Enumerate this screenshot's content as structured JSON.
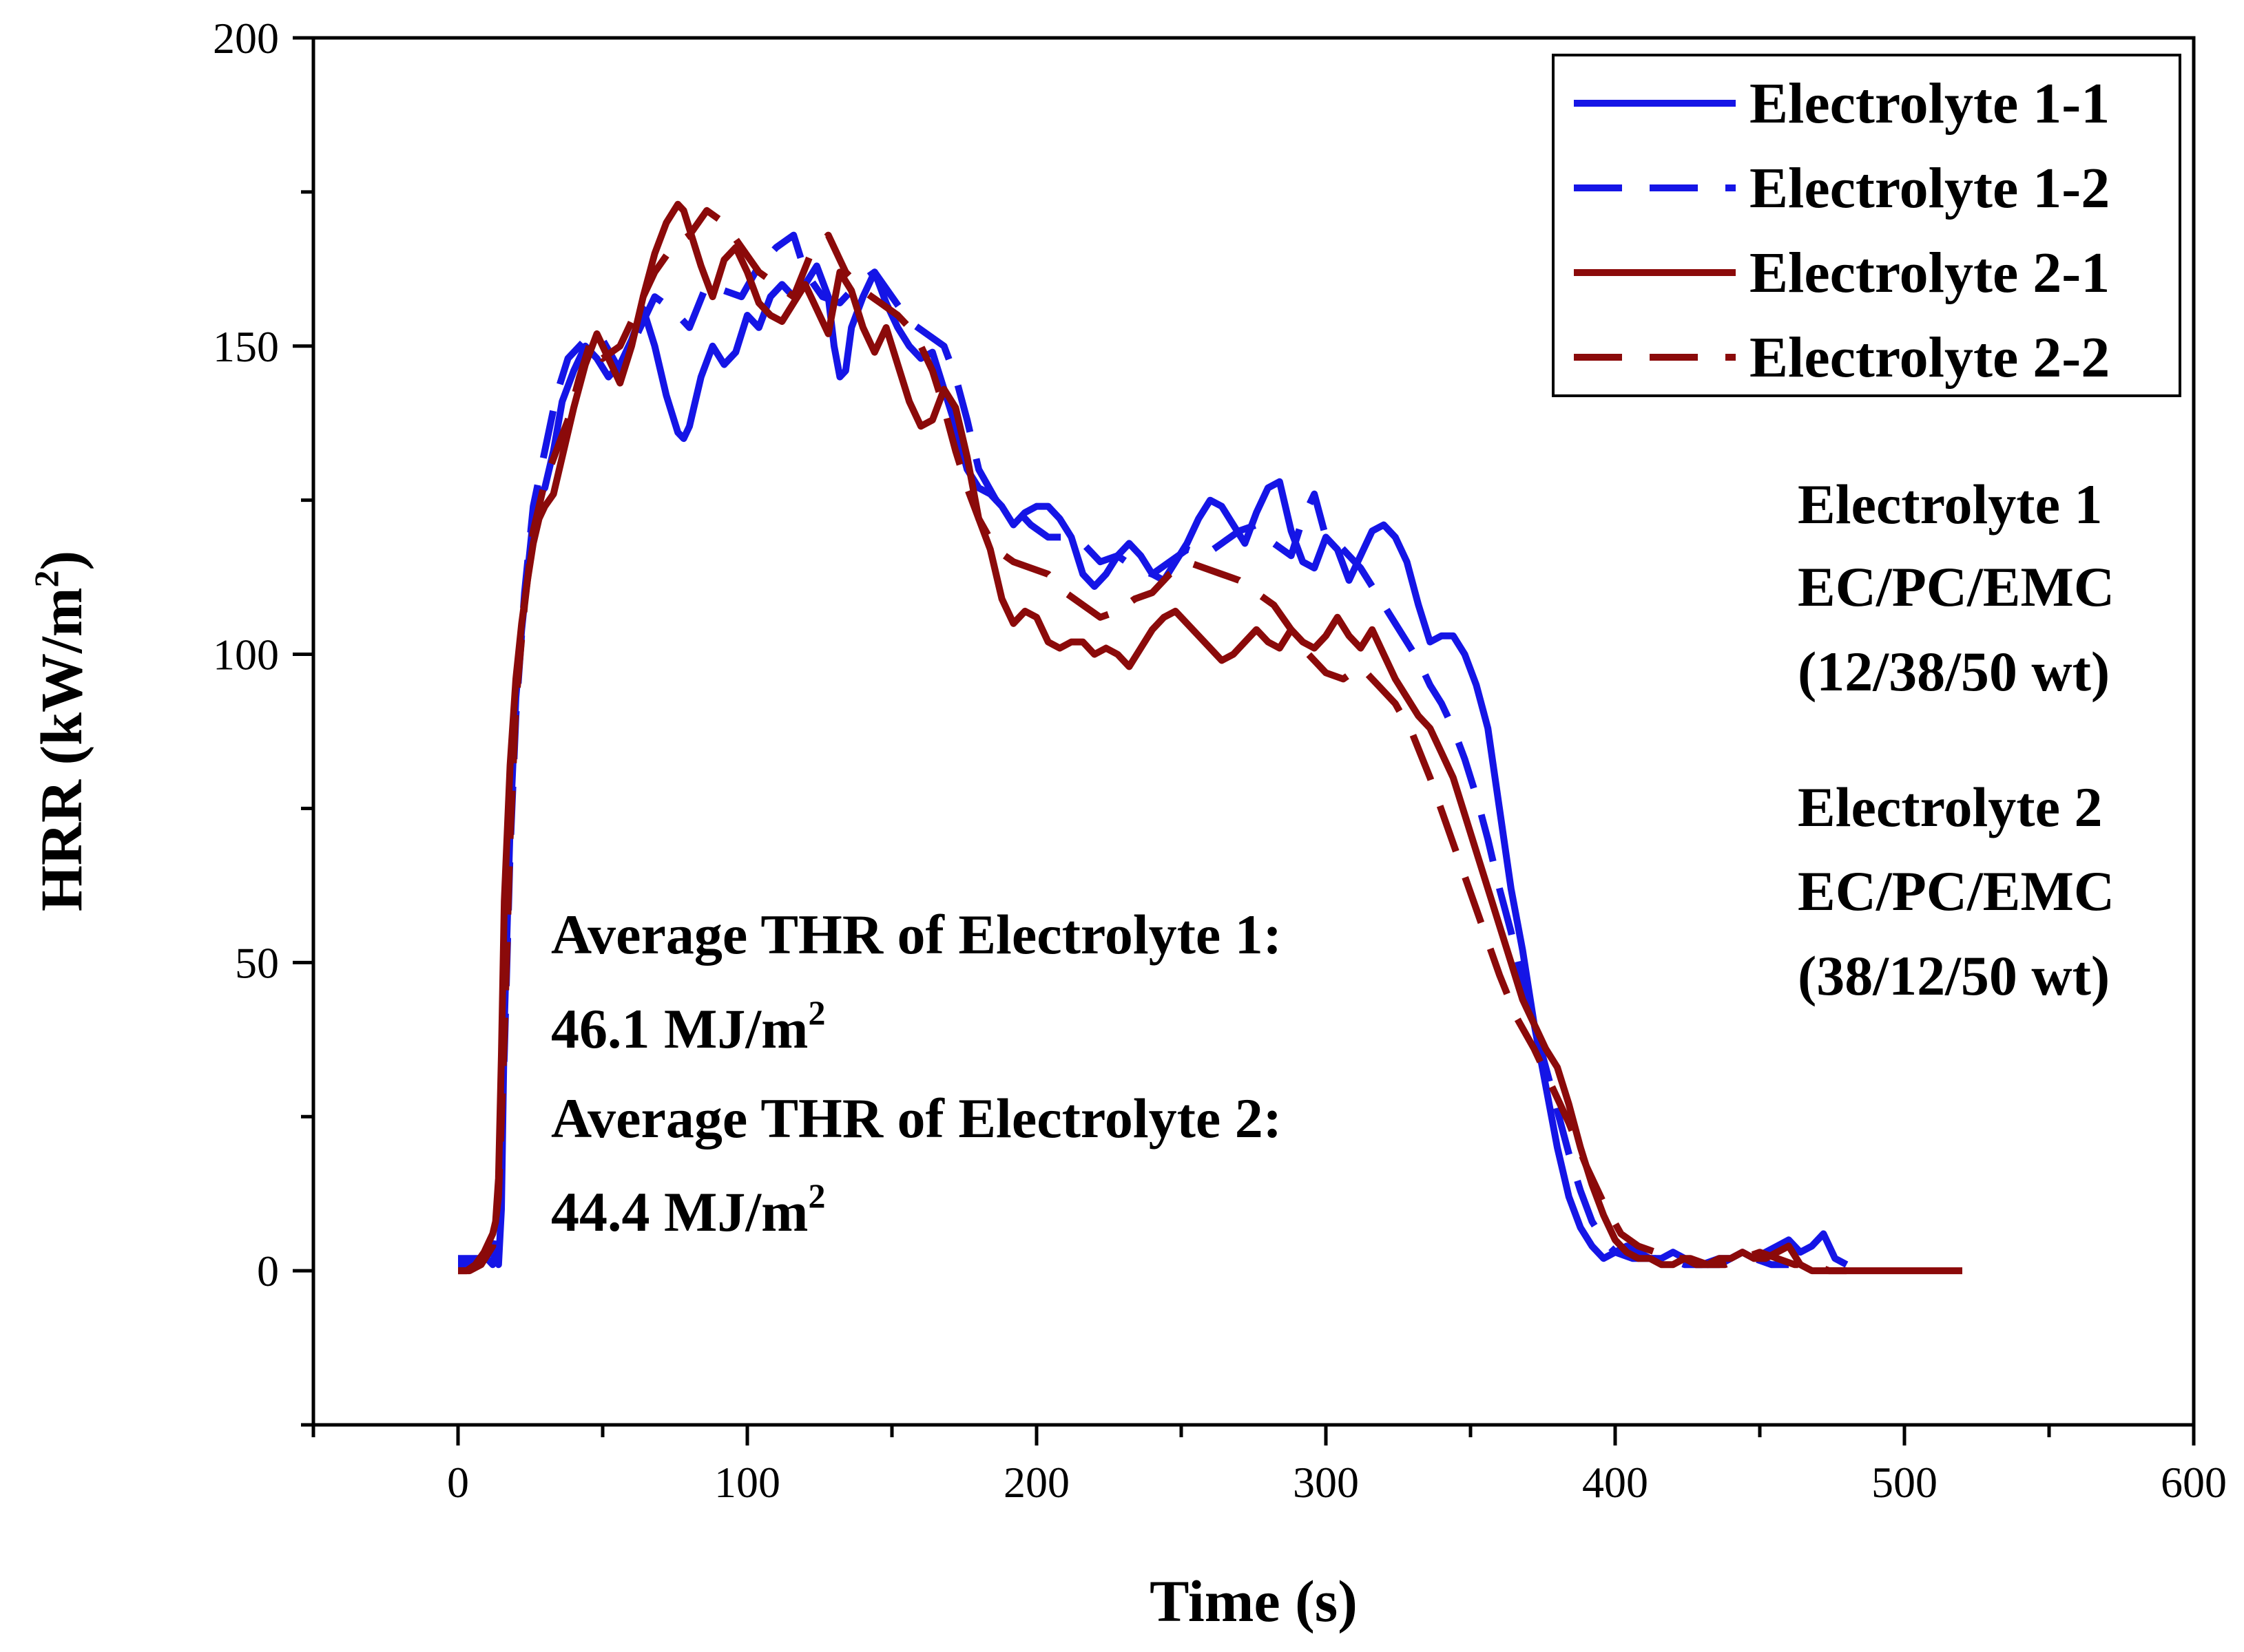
{
  "chart_data": {
    "type": "line",
    "title": "",
    "xlabel": "Time (s)",
    "ylabel": "HRR (kW/m",
    "ylabel_sup": "2",
    "ylabel_close": ")",
    "xlim": [
      -50,
      600
    ],
    "ylim": [
      -25,
      200
    ],
    "xticks": [
      0,
      100,
      200,
      300,
      400,
      500,
      600
    ],
    "yticks": [
      0,
      50,
      100,
      150,
      200
    ],
    "grid": false,
    "legend_position": "top-right",
    "series": [
      {
        "name": "Electrolyte 1-1",
        "color": "#1515e6",
        "dash": "solid",
        "x": [
          0,
          4,
          8,
          10,
          12,
          13,
          14,
          15,
          16,
          18,
          20,
          22,
          24,
          26,
          28,
          30,
          33,
          36,
          40,
          44,
          48,
          52,
          56,
          60,
          64,
          68,
          72,
          76,
          78,
          80,
          84,
          88,
          92,
          96,
          100,
          104,
          108,
          112,
          116,
          120,
          124,
          128,
          130,
          132,
          134,
          136,
          140,
          144,
          148,
          152,
          156,
          160,
          164,
          168,
          172,
          176,
          180,
          184,
          188,
          192,
          196,
          200,
          204,
          208,
          212,
          216,
          220,
          224,
          228,
          232,
          236,
          240,
          244,
          248,
          252,
          256,
          260,
          264,
          268,
          272,
          276,
          280,
          284,
          288,
          292,
          296,
          300,
          304,
          308,
          312,
          316,
          320,
          324,
          328,
          332,
          336,
          340,
          344,
          348,
          352,
          356,
          360,
          364,
          368,
          372,
          376,
          380,
          384,
          388,
          392,
          396,
          400,
          404,
          408,
          412,
          416,
          420,
          424,
          428,
          432,
          436,
          440,
          444,
          448,
          452,
          456,
          460,
          464,
          468,
          472,
          476,
          480
        ],
        "y": [
          1,
          1,
          2,
          2,
          1,
          3,
          1,
          10,
          40,
          72,
          93,
          104,
          113,
          122,
          126,
          127,
          133,
          141,
          146,
          150,
          148,
          145,
          147,
          151,
          156,
          150,
          142,
          136,
          135,
          137,
          145,
          150,
          147,
          149,
          155,
          153,
          158,
          160,
          158,
          160,
          163,
          158,
          150,
          145,
          146,
          153,
          158,
          162,
          157,
          153,
          150,
          148,
          149,
          143,
          137,
          130,
          127,
          126,
          124,
          121,
          123,
          124,
          124,
          122,
          119,
          113,
          111,
          113,
          116,
          118,
          116,
          113,
          112,
          115,
          118,
          122,
          125,
          124,
          121,
          118,
          123,
          127,
          128,
          120,
          115,
          114,
          119,
          117,
          112,
          116,
          120,
          121,
          119,
          115,
          108,
          102,
          103,
          103,
          100,
          95,
          88,
          75,
          62,
          52,
          40,
          30,
          20,
          12,
          7,
          4,
          2,
          3,
          4,
          3,
          2,
          2,
          3,
          2,
          1,
          1,
          1,
          2,
          3,
          2,
          3,
          4,
          5,
          3,
          4,
          6,
          2,
          1
        ],
        "y_extra_note": ""
      },
      {
        "name": "Electrolyte 1-2",
        "color": "#1515e6",
        "dash": "dashed",
        "x": [
          0,
          4,
          8,
          12,
          14,
          16,
          18,
          20,
          23,
          26,
          30,
          34,
          38,
          42,
          46,
          50,
          56,
          62,
          68,
          74,
          80,
          86,
          92,
          98,
          104,
          110,
          116,
          120,
          126,
          132,
          138,
          144,
          150,
          156,
          162,
          168,
          172,
          176,
          180,
          186,
          192,
          198,
          204,
          210,
          216,
          222,
          228,
          234,
          240,
          246,
          252,
          258,
          264,
          270,
          276,
          282,
          288,
          292,
          296,
          300,
          304,
          308,
          312,
          316,
          320,
          324,
          328,
          332,
          336,
          340,
          344,
          348,
          352,
          356,
          360,
          364,
          368,
          372,
          376,
          380,
          384,
          388,
          392,
          396,
          400,
          406,
          412,
          418,
          424,
          430,
          436,
          442,
          448,
          454,
          460
        ],
        "y": [
          2,
          2,
          2,
          3,
          10,
          35,
          68,
          90,
          110,
          124,
          133,
          142,
          148,
          150,
          152,
          151,
          146,
          152,
          158,
          156,
          153,
          160,
          159,
          158,
          163,
          166,
          168,
          162,
          158,
          157,
          160,
          162,
          158,
          154,
          152,
          150,
          145,
          138,
          130,
          125,
          124,
          121,
          119,
          119,
          118,
          115,
          116,
          114,
          113,
          115,
          117,
          116,
          118,
          120,
          121,
          118,
          116,
          122,
          126,
          119,
          118,
          116,
          114,
          111,
          108,
          105,
          102,
          99,
          95,
          92,
          88,
          83,
          77,
          70,
          62,
          55,
          47,
          40,
          33,
          26,
          19,
          13,
          8,
          5,
          3,
          2,
          2,
          2,
          1,
          1,
          2,
          2,
          2,
          1,
          1
        ]
      },
      {
        "name": "Electrolyte 2-1",
        "color": "#8b0a0a",
        "dash": "solid",
        "x": [
          0,
          3,
          6,
          9,
          12,
          13,
          14,
          15,
          16,
          18,
          20,
          22,
          24,
          26,
          28,
          30,
          33,
          36,
          40,
          44,
          48,
          52,
          56,
          60,
          64,
          68,
          72,
          76,
          78,
          80,
          84,
          88,
          92,
          96,
          100,
          104,
          108,
          112,
          116,
          120,
          124,
          128,
          132,
          136,
          140,
          144,
          148,
          152,
          156,
          160,
          164,
          168,
          172,
          176,
          180,
          184,
          188,
          192,
          196,
          200,
          204,
          208,
          212,
          216,
          220,
          224,
          228,
          232,
          236,
          240,
          244,
          248,
          252,
          256,
          260,
          264,
          268,
          272,
          276,
          280,
          284,
          288,
          292,
          296,
          300,
          304,
          308,
          312,
          316,
          320,
          324,
          328,
          332,
          336,
          340,
          344,
          348,
          352,
          356,
          360,
          364,
          368,
          372,
          376,
          380,
          384,
          388,
          392,
          396,
          400,
          404,
          408,
          412,
          416,
          420,
          424,
          428,
          432,
          436,
          440,
          444,
          448,
          452,
          456,
          460,
          464,
          468,
          472,
          476,
          480,
          490,
          500,
          510,
          520
        ],
        "y": [
          0,
          0,
          1,
          3,
          6,
          8,
          15,
          35,
          60,
          82,
          96,
          105,
          112,
          118,
          122,
          124,
          126,
          132,
          140,
          147,
          152,
          148,
          144,
          150,
          158,
          165,
          170,
          173,
          172,
          169,
          163,
          158,
          164,
          166,
          162,
          157,
          155,
          154,
          157,
          160,
          156,
          152,
          162,
          159,
          153,
          149,
          153,
          147,
          141,
          137,
          138,
          143,
          140,
          132,
          122,
          117,
          109,
          105,
          107,
          106,
          102,
          101,
          102,
          102,
          100,
          101,
          100,
          98,
          101,
          104,
          106,
          107,
          105,
          103,
          101,
          99,
          100,
          102,
          104,
          102,
          101,
          104,
          102,
          101,
          103,
          106,
          103,
          101,
          104,
          100,
          96,
          93,
          90,
          88,
          84,
          80,
          74,
          68,
          62,
          56,
          50,
          44,
          40,
          36,
          33,
          27,
          20,
          14,
          9,
          5,
          3,
          2,
          2,
          1,
          1,
          2,
          1,
          1,
          2,
          2,
          3,
          2,
          2,
          3,
          4,
          1,
          0,
          0,
          0,
          0,
          0,
          0,
          0,
          0
        ]
      },
      {
        "name": "Electrolyte 2-2",
        "color": "#8b0a0a",
        "dash": "dashed",
        "x": [
          0,
          4,
          8,
          12,
          14,
          16,
          18,
          20,
          23,
          26,
          30,
          34,
          38,
          42,
          46,
          50,
          56,
          62,
          68,
          74,
          80,
          86,
          92,
          98,
          104,
          110,
          116,
          122,
          128,
          134,
          140,
          146,
          152,
          158,
          164,
          168,
          172,
          176,
          180,
          186,
          192,
          198,
          204,
          210,
          216,
          222,
          228,
          234,
          240,
          246,
          252,
          258,
          264,
          270,
          276,
          282,
          288,
          294,
          300,
          306,
          312,
          318,
          324,
          330,
          336,
          342,
          348,
          354,
          360,
          366,
          372,
          378,
          384,
          390,
          396,
          402,
          408,
          414,
          420,
          426,
          432,
          438,
          444,
          450,
          456,
          462,
          468,
          474,
          480
        ],
        "y": [
          0,
          0,
          1,
          4,
          12,
          38,
          70,
          92,
          108,
          120,
          128,
          133,
          138,
          145,
          151,
          148,
          150,
          156,
          162,
          166,
          168,
          172,
          170,
          166,
          162,
          160,
          158,
          165,
          168,
          162,
          159,
          157,
          155,
          152,
          146,
          140,
          133,
          127,
          122,
          117,
          115,
          114,
          113,
          110,
          108,
          106,
          107,
          109,
          110,
          113,
          115,
          114,
          113,
          112,
          110,
          108,
          104,
          100,
          97,
          96,
          98,
          95,
          92,
          87,
          80,
          72,
          64,
          56,
          48,
          41,
          36,
          30,
          24,
          17,
          11,
          6,
          4,
          3,
          2,
          2,
          1,
          1,
          2,
          3,
          2,
          1,
          1,
          0,
          0
        ]
      }
    ],
    "annotations": {
      "e1_title": "Electrolyte 1",
      "e1_comp": "EC/PC/EMC",
      "e1_ratio": "(12/38/50 wt)",
      "e2_title": "Electrolyte 2",
      "e2_comp": "EC/PC/EMC",
      "e2_ratio": "(38/12/50 wt)",
      "thr1_label": "Average THR of  Electrolyte 1:",
      "thr1_value": "46.1 MJ/m",
      "thr2_label": "Average THR of  Electrolyte 2:",
      "thr2_value": "44.4 MJ/m",
      "unit_sup": "2"
    }
  }
}
